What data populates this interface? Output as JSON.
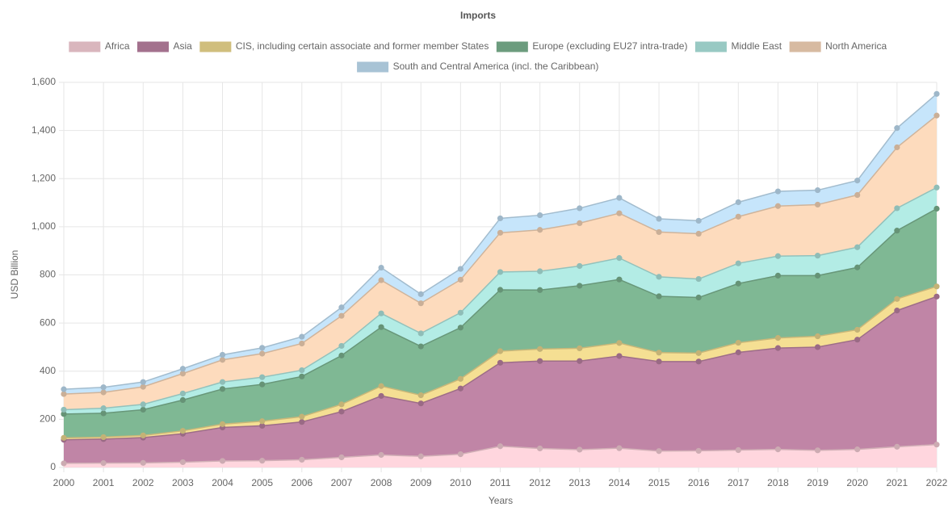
{
  "chart_data": {
    "type": "stacked-area",
    "title": "Imports",
    "x_label": "Years",
    "y_label": "USD Billion",
    "categories": [
      "2000",
      "2001",
      "2002",
      "2003",
      "2004",
      "2005",
      "2006",
      "2007",
      "2008",
      "2009",
      "2010",
      "2011",
      "2012",
      "2013",
      "2014",
      "2015",
      "2016",
      "2017",
      "2018",
      "2019",
      "2020",
      "2021",
      "2022"
    ],
    "series": [
      {
        "name": "Africa",
        "color": "#ffd6de",
        "values": [
          17,
          18,
          19,
          22,
          27,
          28,
          32,
          42,
          52,
          46,
          55,
          88,
          79,
          74,
          80,
          68,
          69,
          72,
          75,
          71,
          75,
          86,
          95
        ]
      },
      {
        "name": "Asia",
        "color": "#c085a6",
        "values": [
          98,
          100,
          105,
          118,
          139,
          145,
          157,
          190,
          245,
          220,
          273,
          347,
          363,
          368,
          383,
          372,
          371,
          406,
          421,
          429,
          456,
          566,
          615
        ]
      },
      {
        "name": "CIS, including certain associate and former member States",
        "color": "#f5df93",
        "values": [
          8,
          8,
          9,
          12,
          14,
          19,
          22,
          30,
          41,
          34,
          40,
          48,
          50,
          53,
          54,
          37,
          35,
          40,
          42,
          45,
          41,
          48,
          42
        ]
      },
      {
        "name": "Europe (excluding EU27 intra-trade)",
        "color": "#7fb894",
        "values": [
          99,
          99,
          107,
          128,
          146,
          153,
          167,
          203,
          245,
          203,
          213,
          255,
          245,
          260,
          264,
          234,
          231,
          246,
          259,
          252,
          259,
          284,
          323
        ]
      },
      {
        "name": "Middle East",
        "color": "#b3ece5",
        "values": [
          18,
          21,
          22,
          27,
          29,
          30,
          26,
          40,
          57,
          54,
          62,
          74,
          78,
          82,
          89,
          81,
          77,
          84,
          81,
          83,
          84,
          93,
          88
        ]
      },
      {
        "name": "North America",
        "color": "#fddbbd",
        "values": [
          65,
          66,
          73,
          83,
          92,
          98,
          111,
          125,
          138,
          125,
          137,
          163,
          172,
          178,
          186,
          186,
          188,
          194,
          208,
          212,
          217,
          253,
          299
        ]
      },
      {
        "name": "South and Central America (incl. the Caribbean)",
        "color": "#c6e5fb",
        "values": [
          20,
          21,
          20,
          20,
          21,
          24,
          28,
          35,
          52,
          38,
          45,
          60,
          61,
          62,
          64,
          55,
          54,
          60,
          61,
          60,
          60,
          80,
          90
        ]
      }
    ],
    "ylim": [
      0,
      1600
    ],
    "yticks": [
      0,
      200,
      400,
      600,
      800,
      {
        "value": 1000,
        "label": "1,000"
      },
      {
        "value": 1200,
        "label": "1,200"
      },
      {
        "value": 1400,
        "label": "1,400"
      },
      {
        "value": 1600,
        "label": "1,600"
      }
    ],
    "grid": true
  }
}
